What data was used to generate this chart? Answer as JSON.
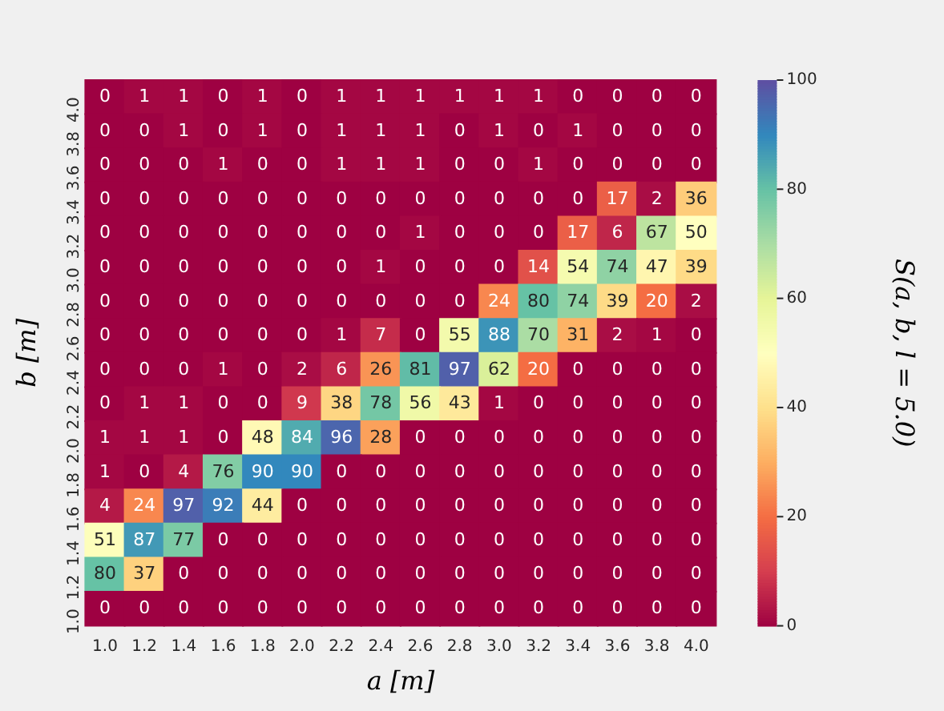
{
  "chart_data": {
    "type": "heatmap",
    "xlabel": "a [m]",
    "ylabel": "b [m]",
    "clabel": "S(a, b, l = 5.0)",
    "categories": [
      "1.0",
      "1.2",
      "1.4",
      "1.6",
      "1.8",
      "2.0",
      "2.2",
      "2.4",
      "2.6",
      "2.8",
      "3.0",
      "3.2",
      "3.4",
      "3.6",
      "3.8",
      "4.0"
    ],
    "y_categories": [
      "4.0",
      "3.8",
      "3.6",
      "3.4",
      "3.2",
      "3.0",
      "2.8",
      "2.6",
      "2.4",
      "2.2",
      "2.0",
      "1.8",
      "1.6",
      "1.4",
      "1.2",
      "1.0"
    ],
    "cells": [
      [
        0,
        1,
        1,
        0,
        1,
        0,
        1,
        1,
        1,
        1,
        1,
        1,
        0,
        0,
        0,
        0
      ],
      [
        0,
        0,
        1,
        0,
        1,
        0,
        1,
        1,
        1,
        0,
        1,
        0,
        1,
        0,
        0,
        0
      ],
      [
        0,
        0,
        0,
        1,
        0,
        0,
        1,
        1,
        1,
        0,
        0,
        1,
        0,
        0,
        0,
        0
      ],
      [
        0,
        0,
        0,
        0,
        0,
        0,
        0,
        0,
        0,
        0,
        0,
        0,
        0,
        17,
        2,
        36
      ],
      [
        0,
        0,
        0,
        0,
        0,
        0,
        0,
        0,
        1,
        0,
        0,
        0,
        17,
        6,
        67,
        50
      ],
      [
        0,
        0,
        0,
        0,
        0,
        0,
        0,
        1,
        0,
        0,
        0,
        14,
        54,
        74,
        47,
        39
      ],
      [
        0,
        0,
        0,
        0,
        0,
        0,
        0,
        0,
        0,
        0,
        24,
        80,
        74,
        39,
        20,
        2
      ],
      [
        0,
        0,
        0,
        0,
        0,
        0,
        1,
        7,
        0,
        55,
        88,
        70,
        31,
        2,
        1,
        0
      ],
      [
        0,
        0,
        0,
        1,
        0,
        2,
        6,
        26,
        81,
        97,
        62,
        20,
        0,
        0,
        0,
        0
      ],
      [
        0,
        1,
        1,
        0,
        0,
        9,
        38,
        78,
        56,
        43,
        1,
        0,
        0,
        0,
        0,
        0
      ],
      [
        1,
        1,
        1,
        0,
        48,
        84,
        96,
        28,
        0,
        0,
        0,
        0,
        0,
        0,
        0,
        0
      ],
      [
        1,
        0,
        4,
        76,
        90,
        90,
        0,
        0,
        0,
        0,
        0,
        0,
        0,
        0,
        0,
        0
      ],
      [
        4,
        24,
        97,
        92,
        44,
        0,
        0,
        0,
        0,
        0,
        0,
        0,
        0,
        0,
        0,
        0
      ],
      [
        51,
        87,
        77,
        0,
        0,
        0,
        0,
        0,
        0,
        0,
        0,
        0,
        0,
        0,
        0,
        0
      ],
      [
        80,
        37,
        0,
        0,
        0,
        0,
        0,
        0,
        0,
        0,
        0,
        0,
        0,
        0,
        0,
        0
      ],
      [
        0,
        0,
        0,
        0,
        0,
        0,
        0,
        0,
        0,
        0,
        0,
        0,
        0,
        0,
        0,
        0
      ]
    ],
    "clim": [
      0,
      100
    ],
    "cticks": [
      0,
      20,
      40,
      60,
      80,
      100
    ],
    "data_labels": true
  }
}
